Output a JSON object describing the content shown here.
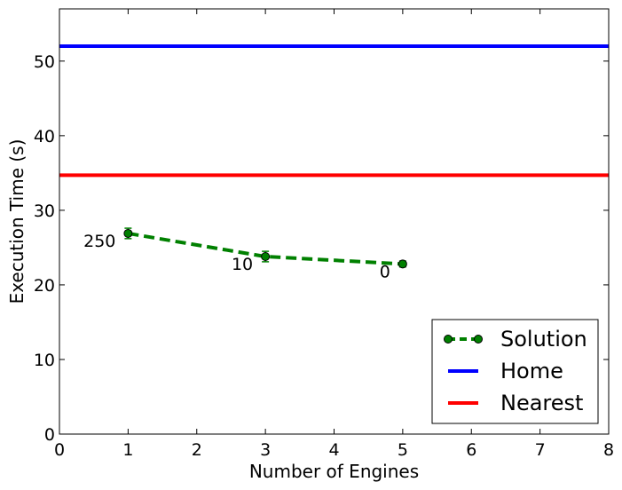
{
  "chart_data": {
    "type": "line",
    "title": "",
    "xlabel": "Number of Engines",
    "ylabel": "Execution Time (s)",
    "xlim": [
      0,
      8
    ],
    "ylim": [
      0,
      57
    ],
    "xticks": [
      0,
      1,
      2,
      3,
      4,
      5,
      6,
      7,
      8
    ],
    "yticks": [
      0,
      10,
      20,
      30,
      40,
      50
    ],
    "grid": false,
    "legend_position": "lower-right",
    "series": [
      {
        "name": "Solution",
        "style": "dashed-with-markers",
        "color": "#008000",
        "x": [
          1,
          3,
          5
        ],
        "y": [
          26.9,
          23.8,
          22.8
        ],
        "error": [
          0.7,
          0.7,
          0.4
        ],
        "point_labels": [
          "250",
          "10",
          "0"
        ]
      },
      {
        "name": "Home",
        "style": "horizontal-line",
        "color": "#0000ff",
        "y": 52.0
      },
      {
        "name": "Nearest",
        "style": "horizontal-line",
        "color": "#ff0000",
        "y": 34.7
      }
    ]
  }
}
